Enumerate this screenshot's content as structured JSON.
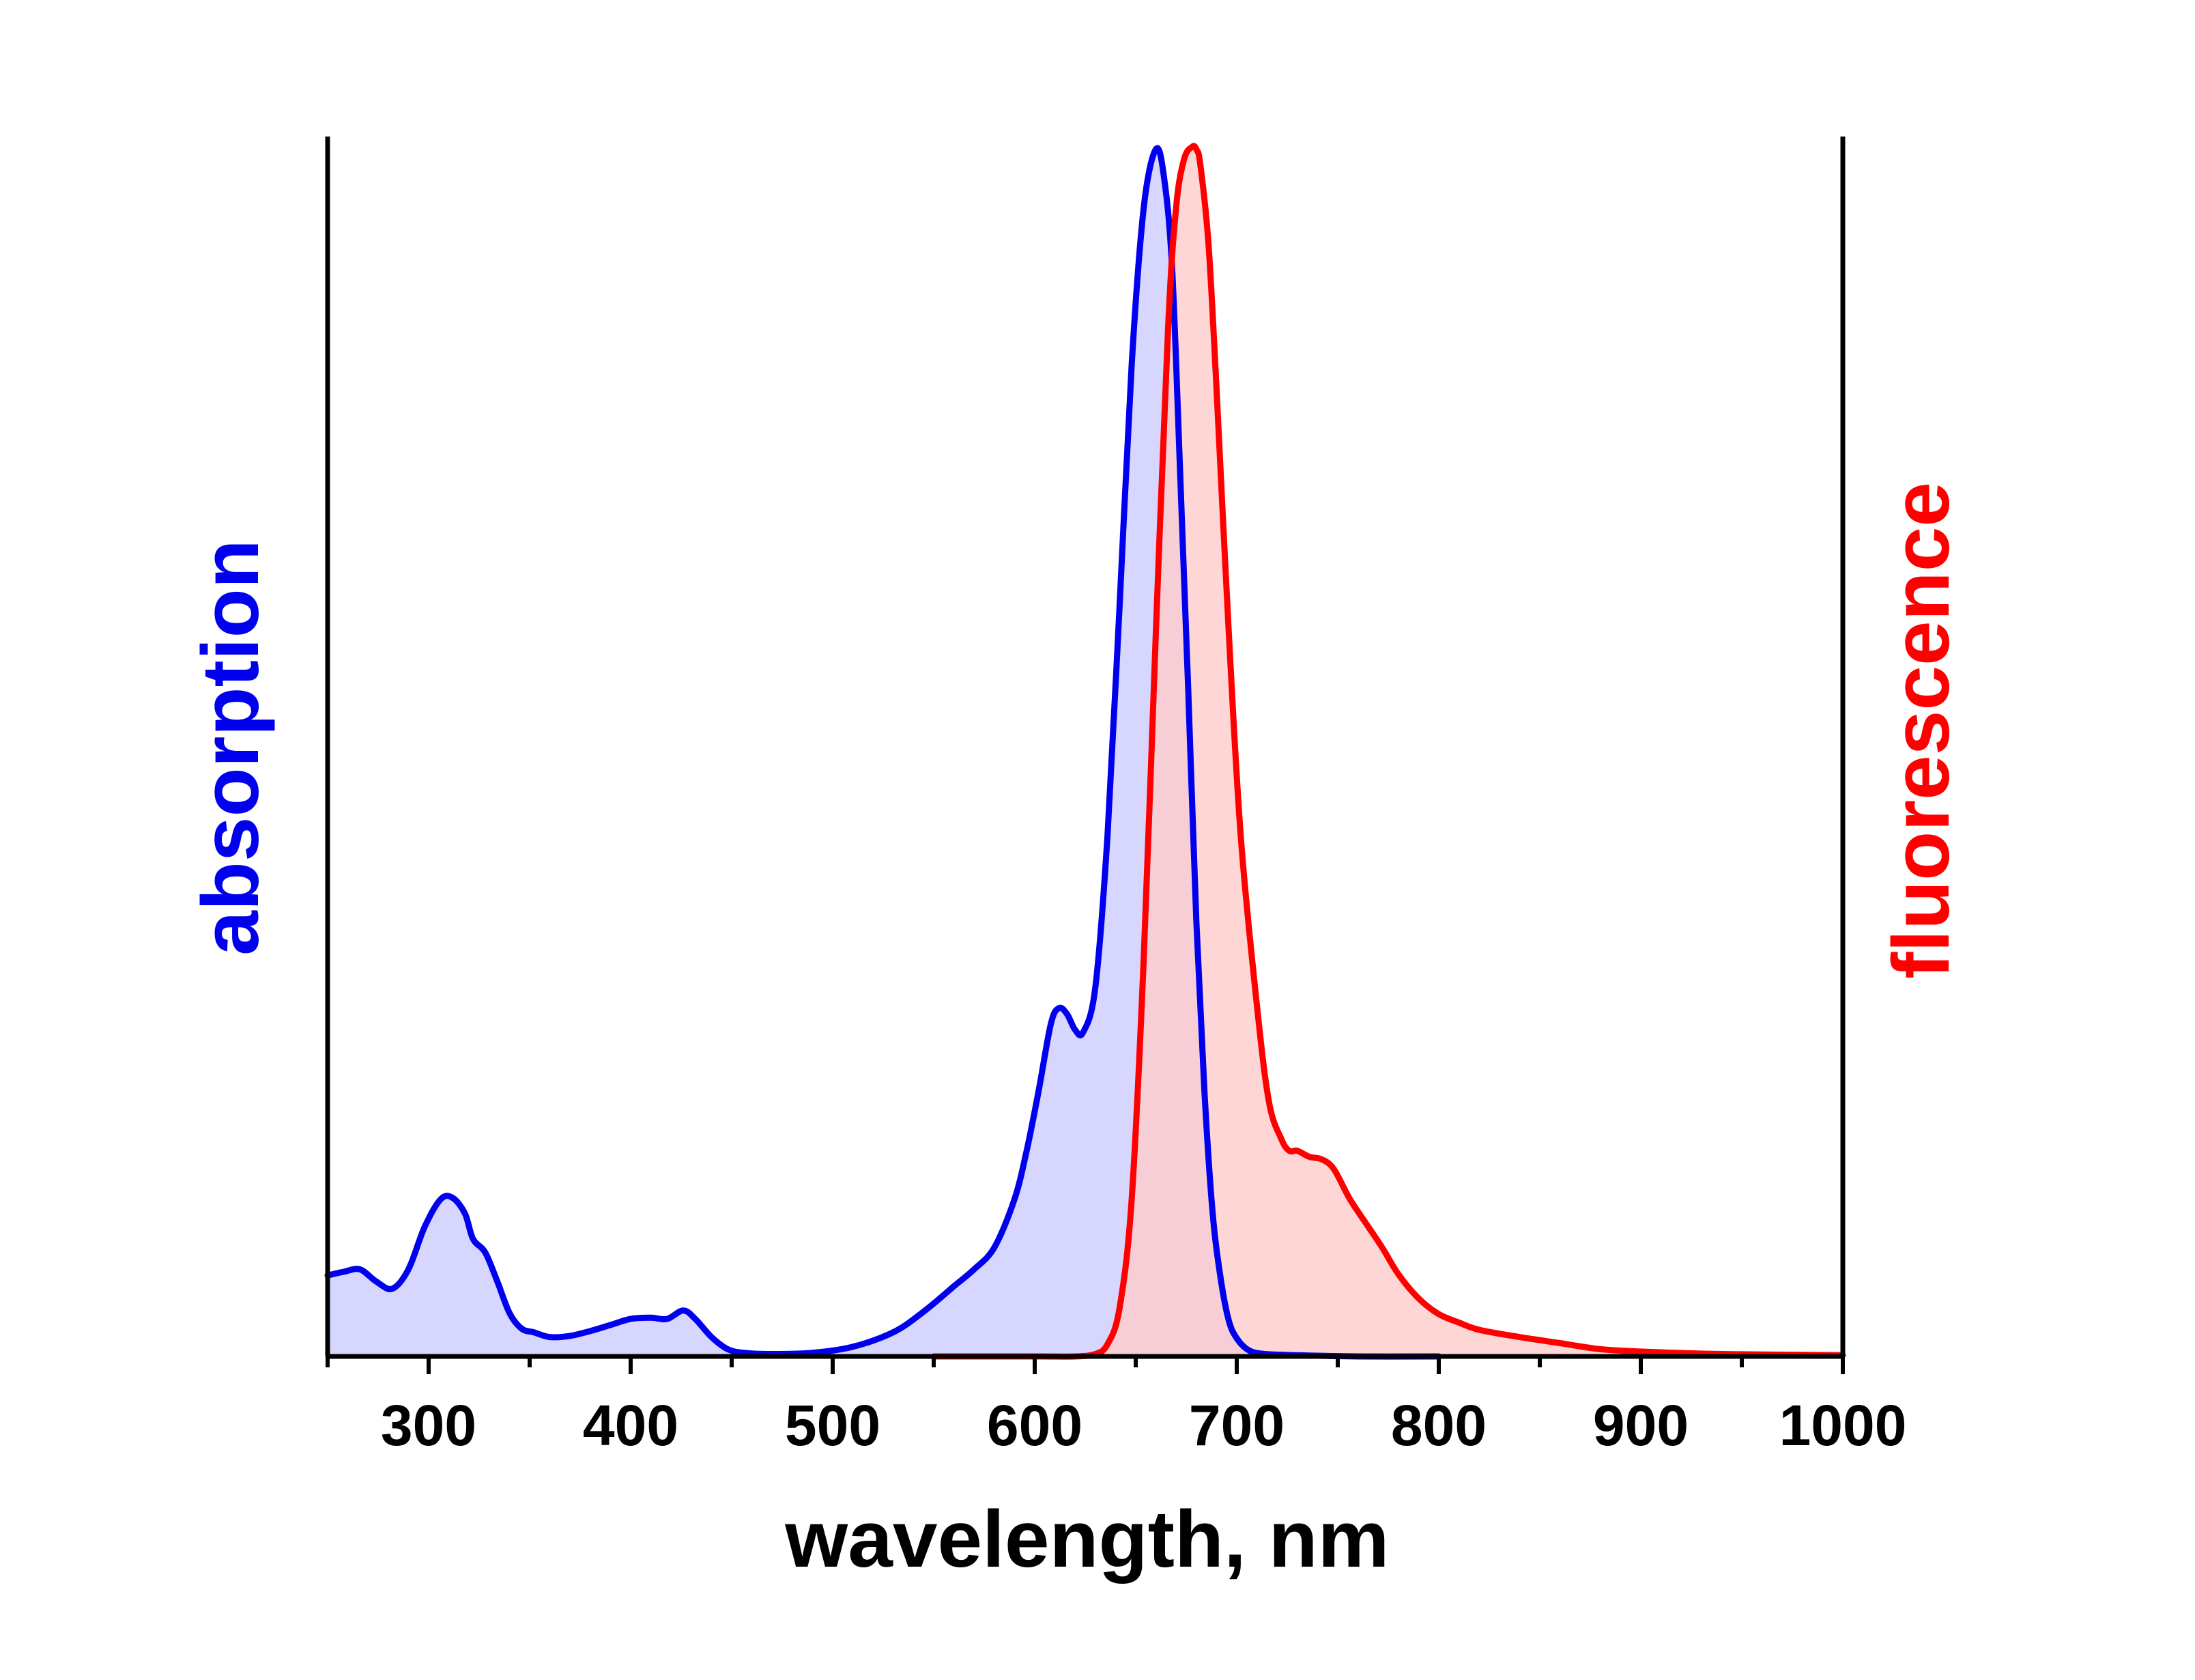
{
  "chart_data": {
    "type": "area",
    "xlabel": "wavelength, nm",
    "ylabel_left": "absorption",
    "ylabel_right": "fluorescence",
    "xlim": [
      250,
      1000
    ],
    "ylim": [
      0,
      1
    ],
    "x_ticks": [
      300,
      400,
      500,
      600,
      700,
      800,
      900,
      1000
    ],
    "x_tick_labels": [
      "300",
      "400",
      "500",
      "600",
      "700",
      "800",
      "900",
      "1000"
    ],
    "y_ticks_shown": false,
    "grid": false,
    "legend": "none",
    "series": [
      {
        "name": "absorption",
        "color": "#0000ee",
        "fill": "#ccccff",
        "x": [
          250,
          258,
          266,
          274,
          282,
          290,
          298,
          306,
          312,
          318,
          322,
          328,
          334,
          340,
          346,
          352,
          360,
          370,
          380,
          390,
          400,
          410,
          418,
          426,
          432,
          440,
          448,
          456,
          470,
          490,
          510,
          530,
          545,
          560,
          570,
          580,
          590,
          596,
          602,
          608,
          612,
          616,
          620,
          624,
          630,
          636,
          642,
          648,
          654,
          660,
          664,
          668,
          672,
          676,
          680,
          684,
          688,
          692,
          696,
          700,
          706,
          714,
          730,
          760,
          800
        ],
        "y": [
          0.067,
          0.07,
          0.072,
          0.062,
          0.056,
          0.072,
          0.107,
          0.13,
          0.131,
          0.118,
          0.097,
          0.086,
          0.062,
          0.036,
          0.023,
          0.02,
          0.016,
          0.017,
          0.021,
          0.026,
          0.031,
          0.032,
          0.031,
          0.038,
          0.031,
          0.016,
          0.006,
          0.003,
          0.002,
          0.003,
          0.008,
          0.02,
          0.037,
          0.058,
          0.072,
          0.09,
          0.13,
          0.17,
          0.22,
          0.275,
          0.288,
          0.283,
          0.27,
          0.268,
          0.305,
          0.43,
          0.62,
          0.82,
          0.95,
          0.998,
          0.975,
          0.9,
          0.73,
          0.55,
          0.36,
          0.22,
          0.12,
          0.065,
          0.03,
          0.015,
          0.005,
          0.002,
          0.001,
          0.0,
          0.0
        ]
      },
      {
        "name": "fluorescence",
        "color": "#ff0000",
        "fill": "#ffcccc",
        "x": [
          550,
          600,
          620,
          630,
          636,
          642,
          648,
          654,
          660,
          666,
          670,
          674,
          678,
          680,
          682,
          686,
          690,
          696,
          702,
          710,
          716,
          722,
          726,
          730,
          736,
          742,
          748,
          756,
          764,
          772,
          780,
          790,
          800,
          810,
          820,
          840,
          860,
          880,
          900,
          940,
          1000
        ],
        "y": [
          0.0,
          0.0,
          0.0,
          0.002,
          0.01,
          0.04,
          0.13,
          0.33,
          0.6,
          0.85,
          0.95,
          0.99,
          1.0,
          0.998,
          0.985,
          0.92,
          0.8,
          0.6,
          0.43,
          0.29,
          0.21,
          0.18,
          0.17,
          0.17,
          0.165,
          0.163,
          0.155,
          0.13,
          0.11,
          0.09,
          0.068,
          0.048,
          0.035,
          0.028,
          0.022,
          0.016,
          0.011,
          0.006,
          0.004,
          0.002,
          0.001
        ]
      }
    ]
  }
}
